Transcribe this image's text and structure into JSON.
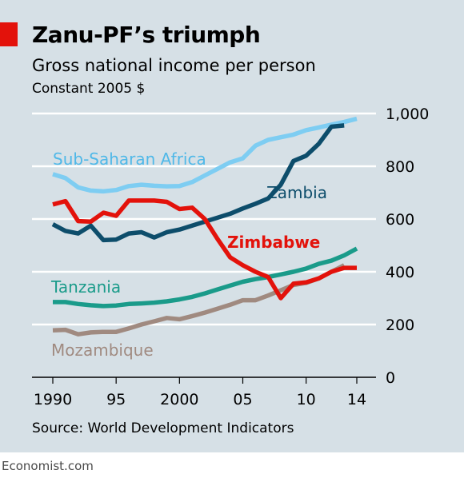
{
  "header": {
    "title": "Zanu-PF’s triumph",
    "subtitle": "Gross national income per person",
    "units": "Constant 2005 $"
  },
  "footer": {
    "source": "Source: World Development Indicators",
    "credit": "Economist.com"
  },
  "chart_data": {
    "type": "line",
    "ylim": [
      0,
      1000
    ],
    "xlim": [
      1990,
      2014
    ],
    "grid": true,
    "x_ticks": [
      {
        "value": 1990,
        "label": "1990"
      },
      {
        "value": 1995,
        "label": "95"
      },
      {
        "value": 2000,
        "label": "2000"
      },
      {
        "value": 2005,
        "label": "05"
      },
      {
        "value": 2010,
        "label": "10"
      },
      {
        "value": 2014,
        "label": "14"
      }
    ],
    "y_ticks": [
      {
        "value": 0,
        "label": "0"
      },
      {
        "value": 200,
        "label": "200"
      },
      {
        "value": 400,
        "label": "400"
      },
      {
        "value": 600,
        "label": "600"
      },
      {
        "value": 800,
        "label": "800"
      },
      {
        "value": 1000,
        "label": "1,000"
      }
    ],
    "series": [
      {
        "name": "Sub-Saharan Africa",
        "color": "#7ecdf2",
        "x": [
          1990,
          1991,
          1992,
          1993,
          1994,
          1995,
          1996,
          1997,
          1998,
          1999,
          2000,
          2001,
          2002,
          2003,
          2004,
          2005,
          2006,
          2007,
          2008,
          2009,
          2010,
          2011,
          2012,
          2013,
          2014
        ],
        "values": [
          770,
          755,
          720,
          708,
          705,
          710,
          725,
          730,
          726,
          724,
          725,
          740,
          765,
          790,
          815,
          830,
          878,
          900,
          910,
          920,
          937,
          947,
          958,
          968,
          980
        ]
      },
      {
        "name": "Zambia",
        "color": "#0d4d6b",
        "x": [
          1990,
          1991,
          1992,
          1993,
          1994,
          1995,
          1996,
          1997,
          1998,
          1999,
          2000,
          2001,
          2002,
          2003,
          2004,
          2005,
          2006,
          2007,
          2008,
          2009,
          2010,
          2011,
          2012,
          2013
        ],
        "values": [
          580,
          555,
          545,
          575,
          520,
          522,
          545,
          550,
          530,
          550,
          560,
          575,
          590,
          605,
          620,
          640,
          658,
          678,
          730,
          820,
          840,
          885,
          950,
          955
        ]
      },
      {
        "name": "Zimbabwe",
        "color": "#e3120b",
        "x": [
          1990,
          1991,
          1992,
          1993,
          1994,
          1995,
          1996,
          1997,
          1998,
          1999,
          2000,
          2001,
          2002,
          2003,
          2004,
          2005,
          2006,
          2007,
          2008,
          2009,
          2010,
          2011,
          2012,
          2013,
          2014
        ],
        "values": [
          655,
          668,
          592,
          590,
          624,
          612,
          670,
          670,
          670,
          665,
          638,
          643,
          600,
          525,
          455,
          425,
          400,
          380,
          300,
          355,
          360,
          375,
          400,
          415,
          415
        ]
      },
      {
        "name": "Tanzania",
        "color": "#1a9b8a",
        "x": [
          1990,
          1991,
          1992,
          1993,
          1994,
          1995,
          1996,
          1997,
          1998,
          1999,
          2000,
          2001,
          2002,
          2003,
          2004,
          2005,
          2006,
          2007,
          2008,
          2009,
          2010,
          2011,
          2012,
          2013,
          2014
        ],
        "values": [
          285,
          285,
          278,
          273,
          270,
          272,
          278,
          280,
          283,
          288,
          295,
          305,
          318,
          333,
          348,
          362,
          372,
          380,
          390,
          400,
          412,
          430,
          442,
          462,
          488
        ]
      },
      {
        "name": "Mozambique",
        "color": "#a08a80",
        "x": [
          1990,
          1991,
          1992,
          1993,
          1994,
          1995,
          1996,
          1997,
          1998,
          1999,
          2000,
          2001,
          2002,
          2003,
          2004,
          2005,
          2006,
          2007,
          2008,
          2009,
          2010,
          2011,
          2012,
          2013
        ],
        "values": [
          178,
          180,
          163,
          170,
          172,
          172,
          185,
          200,
          212,
          225,
          220,
          232,
          245,
          260,
          275,
          292,
          292,
          310,
          330,
          350,
          358,
          375,
          400,
          425
        ]
      }
    ]
  }
}
